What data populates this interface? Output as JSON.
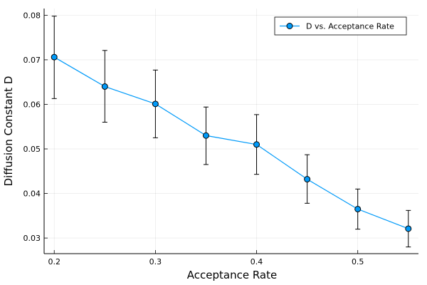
{
  "chart_data": {
    "type": "scatter",
    "title": "",
    "xlabel": "Acceptance Rate",
    "ylabel": "Diffusion Constant D",
    "xlim": [
      0.19,
      0.56
    ],
    "ylim": [
      0.0265,
      0.0815
    ],
    "xticks": [
      "0.2",
      "0.3",
      "0.4",
      "0.5"
    ],
    "yticks": [
      "0.03",
      "0.04",
      "0.05",
      "0.06",
      "0.07",
      "0.08"
    ],
    "grid": true,
    "legend_position": "top-right",
    "series": [
      {
        "name": "D vs. Acceptance Rate",
        "color": "#009af9",
        "marker": "circle",
        "line": true,
        "x": [
          0.2,
          0.25,
          0.3,
          0.35,
          0.4,
          0.45,
          0.5,
          0.55
        ],
        "y": [
          0.0706,
          0.064,
          0.0601,
          0.053,
          0.051,
          0.0432,
          0.0365,
          0.0321
        ],
        "err_low": [
          0.0613,
          0.056,
          0.0525,
          0.0465,
          0.0443,
          0.0378,
          0.032,
          0.028
        ],
        "err_high": [
          0.0798,
          0.0721,
          0.0677,
          0.0594,
          0.0577,
          0.0487,
          0.041,
          0.0362
        ]
      }
    ]
  }
}
